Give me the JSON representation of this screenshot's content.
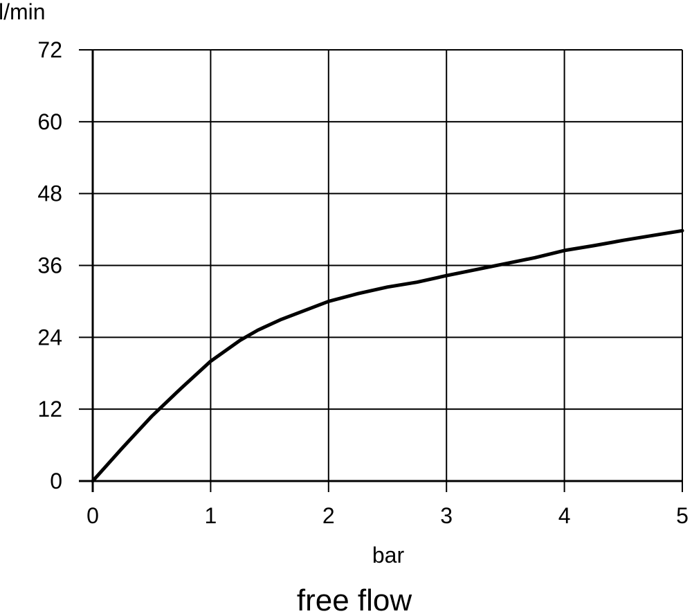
{
  "chart_data": {
    "type": "line",
    "title": "",
    "caption": "free flow",
    "xlabel": "bar",
    "ylabel": "l/min",
    "xlim": [
      0,
      5
    ],
    "ylim": [
      0,
      72
    ],
    "xticks": [
      0,
      1,
      2,
      3,
      4,
      5
    ],
    "yticks": [
      0,
      12,
      24,
      36,
      48,
      60,
      72
    ],
    "grid": true,
    "series": [
      {
        "x": [
          0,
          0.25,
          0.5,
          0.75,
          1.0,
          1.25,
          1.4,
          1.6,
          1.8,
          2.0,
          2.25,
          2.5,
          2.75,
          3.0,
          3.25,
          3.5,
          3.75,
          4.0,
          4.25,
          4.5,
          4.75,
          5.0
        ],
        "y": [
          0,
          5.5,
          10.8,
          15.5,
          20.0,
          23.5,
          25.2,
          27.0,
          28.5,
          30.0,
          31.3,
          32.4,
          33.2,
          34.3,
          35.3,
          36.3,
          37.3,
          38.5,
          39.3,
          40.2,
          41.0,
          41.8
        ]
      }
    ]
  }
}
